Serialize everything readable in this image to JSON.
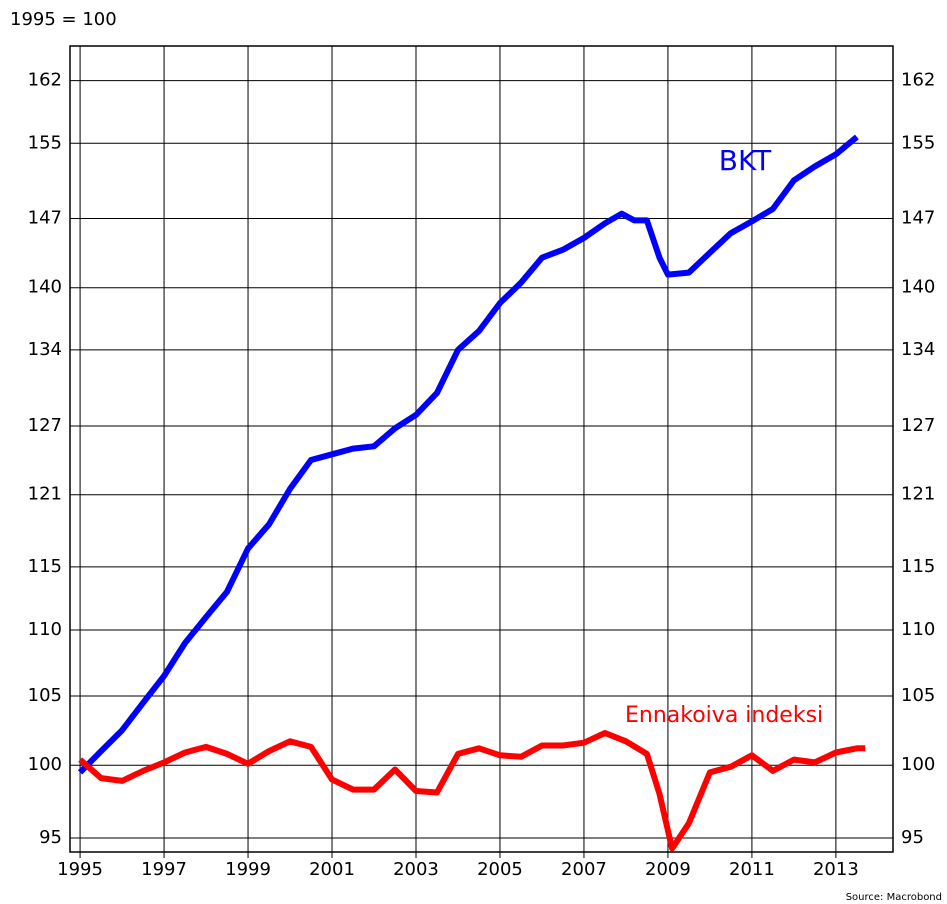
{
  "chart_data": {
    "type": "line",
    "subtitle": "1995 = 100",
    "source": "Source: Macrobond",
    "log_scale": true,
    "grid": true,
    "xlim": [
      1994.76,
      2014.36
    ],
    "xticks": [
      1995,
      1997,
      1999,
      2001,
      2003,
      2005,
      2007,
      2009,
      2011,
      2013
    ],
    "ylim": [
      94.07,
      166
    ],
    "yticks": [
      95,
      100,
      105,
      110,
      115,
      121,
      127,
      134,
      140,
      147,
      155,
      162
    ],
    "series": [
      {
        "name": "BKT",
        "color": "#0000ff",
        "x": [
          1995.0,
          1995.5,
          1996.0,
          1996.5,
          1997.0,
          1997.5,
          1998.0,
          1998.5,
          1999.0,
          1999.5,
          2000.0,
          2000.5,
          2001.0,
          2001.5,
          2002.0,
          2002.5,
          2003.0,
          2003.5,
          2004.0,
          2004.5,
          2005.0,
          2005.5,
          2006.0,
          2006.5,
          2007.0,
          2007.5,
          2007.9,
          2008.2,
          2008.5,
          2008.8,
          2009.0,
          2009.5,
          2010.0,
          2010.5,
          2011.0,
          2011.5,
          2012.0,
          2012.5,
          2013.0,
          2013.5
        ],
        "values": [
          99.5,
          101,
          102.5,
          104.5,
          106.5,
          109,
          111,
          113,
          116.5,
          118.5,
          121.5,
          124,
          124.5,
          125,
          125.2,
          126.8,
          128,
          130,
          134,
          135.8,
          138.5,
          140.5,
          143,
          143.8,
          145,
          146.5,
          147.5,
          146.8,
          146.8,
          143,
          141.3,
          141.5,
          143.5,
          145.5,
          146.7,
          148,
          151,
          152.5,
          153.8,
          155.7
        ]
      },
      {
        "name": "Ennakoiva indeksi",
        "color": "#ff0000",
        "x": [
          1995.0,
          1995.5,
          1996.0,
          1996.5,
          1997.0,
          1997.5,
          1998.0,
          1998.5,
          1999.0,
          1999.5,
          2000.0,
          2000.5,
          2001.0,
          2001.5,
          2002.0,
          2002.5,
          2003.0,
          2003.5,
          2004.0,
          2004.5,
          2005.0,
          2005.5,
          2006.0,
          2006.5,
          2007.0,
          2007.5,
          2008.0,
          2008.5,
          2008.8,
          2009.1,
          2009.5,
          2010.0,
          2010.5,
          2011.0,
          2011.5,
          2012.0,
          2012.5,
          2013.0,
          2013.5,
          2013.7
        ],
        "values": [
          100.4,
          99.1,
          98.9,
          99.6,
          100.2,
          100.9,
          101.3,
          100.8,
          100.1,
          101.0,
          101.7,
          101.3,
          99.0,
          98.3,
          98.3,
          99.7,
          98.2,
          98.1,
          100.8,
          101.2,
          100.7,
          100.6,
          101.4,
          101.4,
          101.6,
          102.3,
          101.7,
          100.8,
          98,
          94.3,
          96,
          99.5,
          99.9,
          100.7,
          99.6,
          100.4,
          100.2,
          100.9,
          101.2,
          101.2
        ]
      }
    ]
  }
}
